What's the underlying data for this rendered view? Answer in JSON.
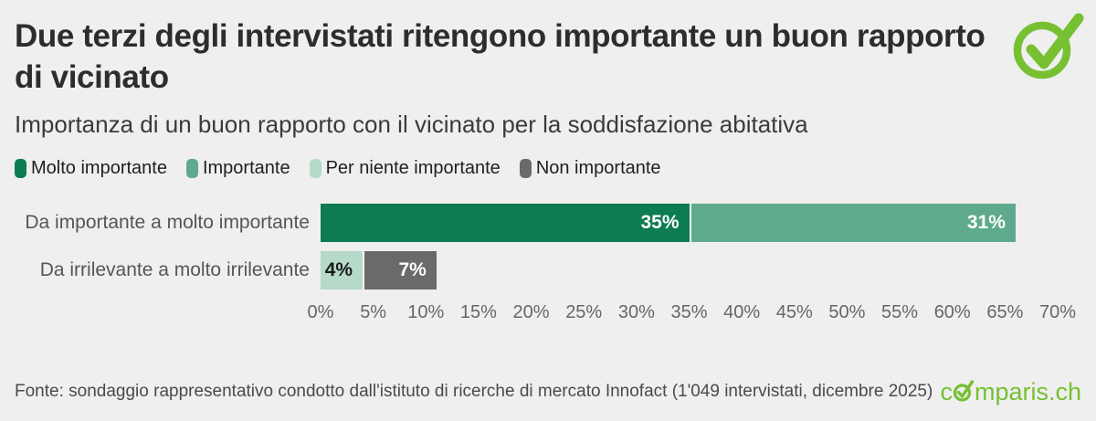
{
  "page": {
    "background_color": "#efefef"
  },
  "header": {
    "title": "Due terzi degli intervistati ritengono importante un buon rapporto di vicinato",
    "subtitle": "Importanza di un buon rapporto con il vicinato per la soddisfazione abitativa",
    "brand_icon": "check-circle-icon",
    "brand_color": "#76c032"
  },
  "legend": {
    "items": [
      {
        "label": "Molto importante",
        "color": "#0d7c53"
      },
      {
        "label": "Importante",
        "color": "#5faa8c"
      },
      {
        "label": "Per niente importante",
        "color": "#b7d9ca"
      },
      {
        "label": "Non importante",
        "color": "#6a6a6a"
      }
    ]
  },
  "chart_data": {
    "type": "bar",
    "orientation": "horizontal",
    "stacked": true,
    "grid": false,
    "legend_position": "top",
    "title": "Importanza di un buon rapporto con il vicinato per la soddisfazione abitativa",
    "categories": [
      "Da importante a molto importante",
      "Da irrilevante a molto irrilevante"
    ],
    "series": [
      {
        "name": "Molto importante",
        "color": "#0d7c53",
        "values": [
          35,
          0
        ]
      },
      {
        "name": "Importante",
        "color": "#5faa8c",
        "values": [
          31,
          0
        ]
      },
      {
        "name": "Per niente importante",
        "color": "#b7d9ca",
        "values": [
          0,
          4
        ]
      },
      {
        "name": "Non importante",
        "color": "#6a6a6a",
        "values": [
          0,
          7
        ]
      }
    ],
    "rows": [
      {
        "category": "Da importante a molto importante",
        "segments": [
          {
            "series": "Molto importante",
            "value": 35,
            "label": "35%",
            "color": "#0d7c53",
            "label_color": "#ffffff"
          },
          {
            "series": "Importante",
            "value": 31,
            "label": "31%",
            "color": "#5faa8c",
            "label_color": "#ffffff"
          }
        ]
      },
      {
        "category": "Da irrilevante a molto irrilevante",
        "segments": [
          {
            "series": "Per niente importante",
            "value": 4,
            "label": "4%",
            "color": "#b7d9ca",
            "label_color": "#1a1a1a"
          },
          {
            "series": "Non importante",
            "value": 7,
            "label": "7%",
            "color": "#6a6a6a",
            "label_color": "#ffffff"
          }
        ]
      }
    ],
    "x_axis": {
      "min": 0,
      "max": 70,
      "step": 5,
      "tick_labels": [
        "0%",
        "5%",
        "10%",
        "15%",
        "20%",
        "25%",
        "30%",
        "35%",
        "40%",
        "45%",
        "50%",
        "55%",
        "60%",
        "65%",
        "70%"
      ]
    }
  },
  "footer": {
    "source": "Fonte: sondaggio rappresentativo condotto dall'istituto di ricerche di mercato Innofact (1'049 intervistati, dicembre 2025)",
    "logo_prefix": "c",
    "logo_suffix": "mparis.ch",
    "logo_color": "#76c032"
  }
}
